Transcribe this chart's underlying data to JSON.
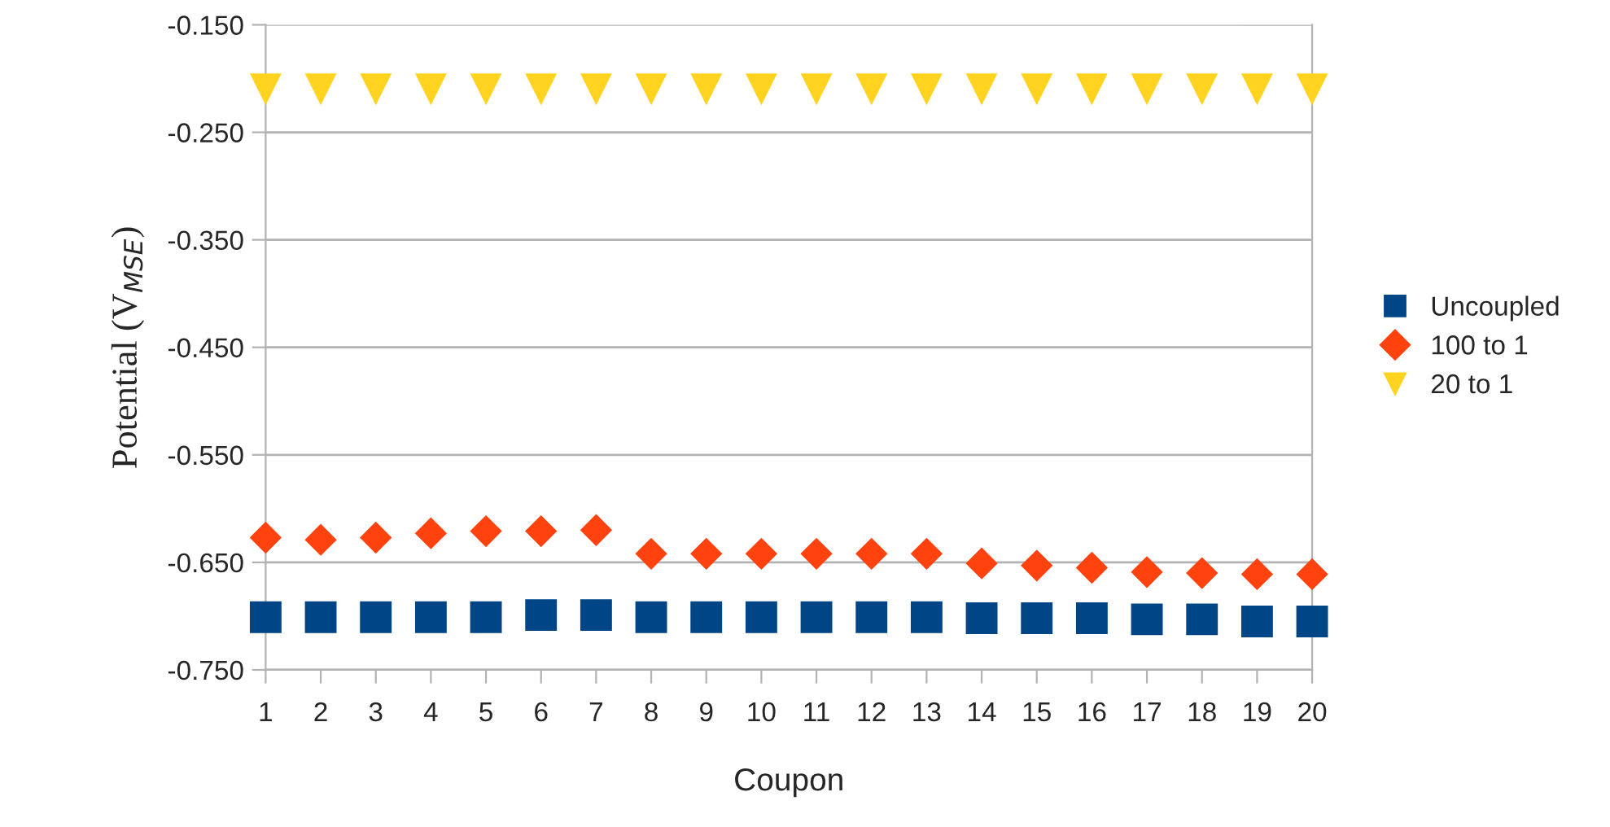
{
  "chart_data": {
    "type": "scatter",
    "xlabel": "Coupon",
    "ylabel": "Potential (V$_{MSE}$)",
    "categories": [
      "1",
      "2",
      "3",
      "4",
      "5",
      "6",
      "7",
      "8",
      "9",
      "10",
      "11",
      "12",
      "13",
      "14",
      "15",
      "16",
      "17",
      "18",
      "19",
      "20"
    ],
    "series": [
      {
        "name": "Uncoupled",
        "color": "#004586",
        "marker": "square",
        "values": [
          -0.701,
          -0.701,
          -0.701,
          -0.701,
          -0.701,
          -0.699,
          -0.699,
          -0.701,
          -0.701,
          -0.701,
          -0.701,
          -0.701,
          -0.701,
          -0.702,
          -0.702,
          -0.702,
          -0.703,
          -0.703,
          -0.705,
          -0.705
        ]
      },
      {
        "name": "100 to 1",
        "color": "#ff420e",
        "marker": "diamond",
        "values": [
          -0.627,
          -0.629,
          -0.627,
          -0.623,
          -0.621,
          -0.621,
          -0.62,
          -0.642,
          -0.642,
          -0.642,
          -0.642,
          -0.642,
          -0.642,
          -0.651,
          -0.653,
          -0.655,
          -0.659,
          -0.66,
          -0.661,
          -0.661
        ]
      },
      {
        "name": "20 to 1",
        "color": "#ffd320",
        "marker": "triangle",
        "values": [
          -0.21,
          -0.21,
          -0.21,
          -0.21,
          -0.21,
          -0.21,
          -0.21,
          -0.21,
          -0.21,
          -0.21,
          -0.21,
          -0.21,
          -0.21,
          -0.21,
          -0.21,
          -0.21,
          -0.21,
          -0.21,
          -0.21,
          -0.21
        ]
      }
    ],
    "ylim": [
      -0.75,
      -0.15
    ],
    "yticks": [
      {
        "value": -0.75,
        "label": "-0.750"
      },
      {
        "value": -0.65,
        "label": "-0.650"
      },
      {
        "value": -0.55,
        "label": "-0.550"
      },
      {
        "value": -0.45,
        "label": "-0.450"
      },
      {
        "value": -0.35,
        "label": "-0.350"
      },
      {
        "value": -0.25,
        "label": "-0.250"
      },
      {
        "value": -0.15,
        "label": "-0.150"
      }
    ],
    "grid": "y",
    "legend": "right"
  }
}
